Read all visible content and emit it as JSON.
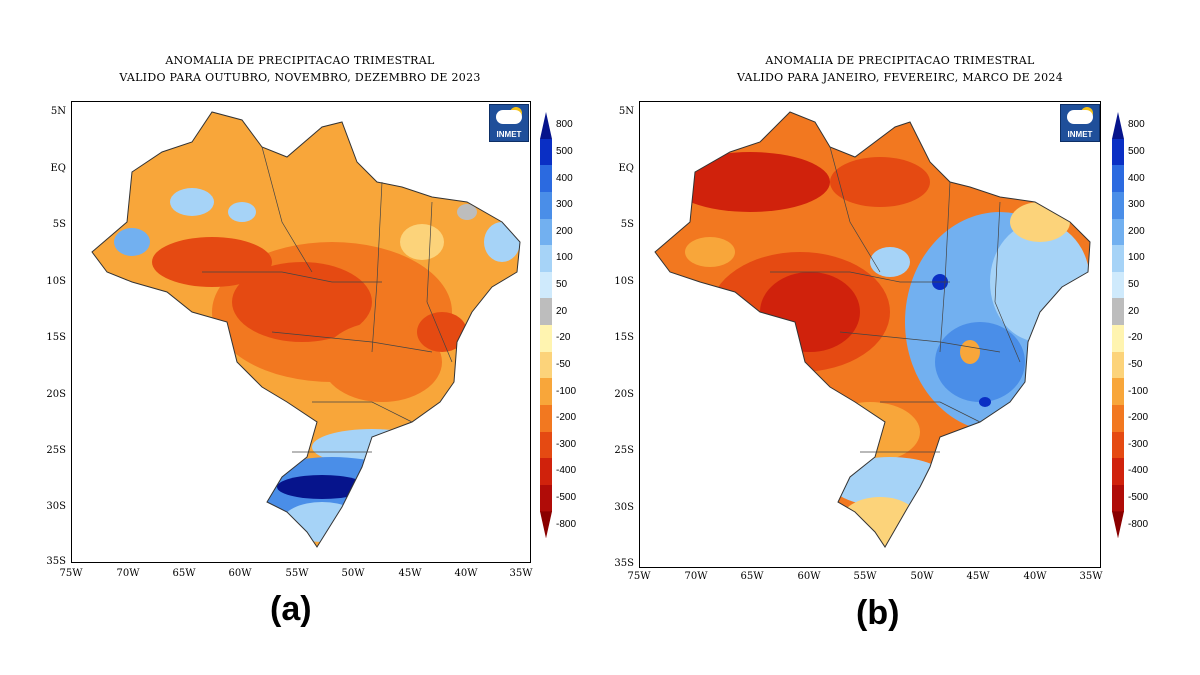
{
  "panels": [
    {
      "id": "a",
      "title_line1": "ANOMALIA DE PRECIPITACAO TRIMESTRAL",
      "title_line2": "VALIDO PARA OUTUBRO, NOVEMBRO, DEZEMBRO DE 2023",
      "label": "(a)",
      "logo_text": "INMET",
      "dominant_pattern": "negative anomalies (orange/red) across most of Brazil; strong positive anomaly (dark blue) in the South"
    },
    {
      "id": "b",
      "title_line1": "ANOMALIA DE PRECIPITACAO TRIMESTRAL",
      "title_line2": "VALIDO PARA JANEIRO, FEVEREIRC, MARCO DE 2024",
      "label": "(b)",
      "logo_text": "INMET",
      "dominant_pattern": "negative anomalies (orange/red) in North and Center-West; positive anomalies (blue) in Northeast and Southeast"
    }
  ],
  "y_ticks": [
    "5N",
    "EQ",
    "5S",
    "10S",
    "15S",
    "20S",
    "25S",
    "30S",
    "35S"
  ],
  "x_ticks": [
    "75W",
    "70W",
    "65W",
    "60W",
    "55W",
    "50W",
    "45W",
    "40W",
    "35W"
  ],
  "colorbar": [
    {
      "label": "800",
      "color": "#06148c"
    },
    {
      "label": "500",
      "color": "#0a2fc4"
    },
    {
      "label": "400",
      "color": "#2b6ae0"
    },
    {
      "label": "300",
      "color": "#4a8ee8"
    },
    {
      "label": "200",
      "color": "#72b0f0"
    },
    {
      "label": "100",
      "color": "#a6d3f7"
    },
    {
      "label": "50",
      "color": "#cfeafc"
    },
    {
      "label": "20",
      "color": "#bdbdbd"
    },
    {
      "label": "-20",
      "color": "#fff4b0"
    },
    {
      "label": "-50",
      "color": "#fcd37a"
    },
    {
      "label": "-100",
      "color": "#f8a63a"
    },
    {
      "label": "-200",
      "color": "#f27820"
    },
    {
      "label": "-300",
      "color": "#e54a12"
    },
    {
      "label": "-400",
      "color": "#d0220c"
    },
    {
      "label": "-500",
      "color": "#b00c08"
    },
    {
      "label": "-800",
      "color": "#8a0000"
    }
  ]
}
